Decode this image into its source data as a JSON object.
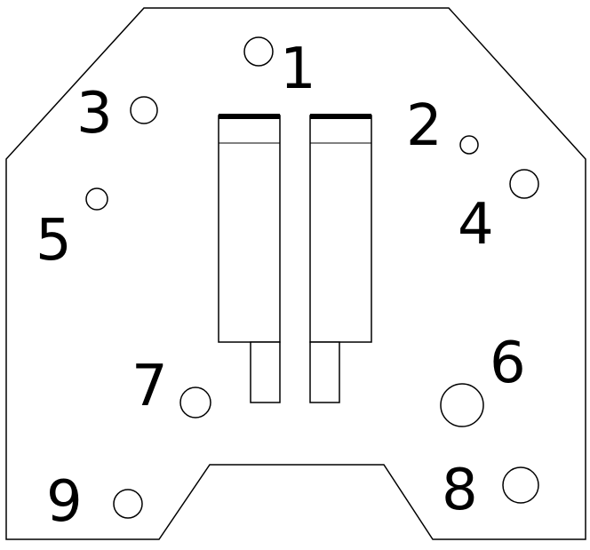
{
  "labels": {
    "l1": "1",
    "l2": "2",
    "l3": "3",
    "l4": "4",
    "l5": "5",
    "l6": "6",
    "l7": "7",
    "l8": "8",
    "l9": "9"
  }
}
